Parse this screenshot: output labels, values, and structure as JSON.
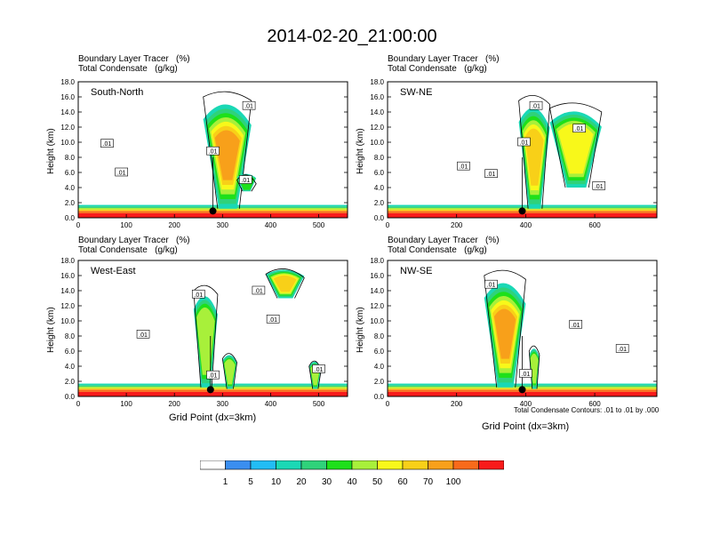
{
  "title": "2014-02-20_21:00:00",
  "colors": {
    "levels": [
      "#ffffff",
      "#3a8ef0",
      "#22bdf5",
      "#1ad8b5",
      "#2fd27a",
      "#1ee01a",
      "#a8f03a",
      "#f8f81a",
      "#f8d018",
      "#f8a01a",
      "#f86a1a",
      "#f81a1a"
    ]
  },
  "colorbar": {
    "labels": [
      "1",
      "5",
      "10",
      "20",
      "30",
      "40",
      "50",
      "60",
      "70",
      "100"
    ]
  },
  "shared": {
    "head_line1": "Boundary Layer Tracer   (%)",
    "head_line2": "Total Condensate   (g/kg)",
    "ylabel": "Height (km)",
    "xlabel": "Grid Point (dx=3km)",
    "contour_note": "Total Condensate Contours: .01 to .01 by .000",
    "yticks": [
      "0.0",
      "2.0",
      "4.0",
      "6.0",
      "8.0",
      "10.0",
      "12.0",
      "14.0",
      "16.0",
      "18.0"
    ]
  },
  "chart_data": [
    {
      "type": "heatmap",
      "name": "South-North",
      "xlabel": "",
      "ylabel": "Height (km)",
      "xlim": [
        0,
        560
      ],
      "ylim": [
        0,
        18
      ],
      "xticks": [
        0,
        100,
        200,
        300,
        400,
        500
      ],
      "yticks": [
        0,
        2,
        4,
        6,
        8,
        10,
        12,
        14,
        16,
        18
      ],
      "marker_x": 280,
      "contour_labels": [
        {
          "x": 60,
          "y": 9.8,
          "text": ".01"
        },
        {
          "x": 90,
          "y": 6.0,
          "text": ".01"
        },
        {
          "x": 280,
          "y": 8.8,
          "text": ".01"
        },
        {
          "x": 355,
          "y": 14.8,
          "text": ".01"
        },
        {
          "x": 348,
          "y": 5.0,
          "text": ".01"
        }
      ],
      "plumes": [
        {
          "x0": 260,
          "x1": 360,
          "ytop": 17.0,
          "base": 1.2,
          "peak": 60
        },
        {
          "x0": 330,
          "x1": 370,
          "ytop": 6.0,
          "base": 3.5,
          "peak": 20
        }
      ]
    },
    {
      "type": "heatmap",
      "name": "SW-NE",
      "xlabel": "",
      "ylabel": "Height (km)",
      "xlim": [
        0,
        780
      ],
      "ylim": [
        0,
        18
      ],
      "xticks": [
        0,
        200,
        400,
        600
      ],
      "yticks": [
        0,
        2,
        4,
        6,
        8,
        10,
        12,
        14,
        16,
        18
      ],
      "marker_x": 390,
      "contour_labels": [
        {
          "x": 395,
          "y": 10.0,
          "text": ".01"
        },
        {
          "x": 430,
          "y": 14.8,
          "text": ".01"
        },
        {
          "x": 555,
          "y": 11.8,
          "text": ".01"
        },
        {
          "x": 220,
          "y": 6.8,
          "text": ".01"
        },
        {
          "x": 300,
          "y": 5.8,
          "text": ".01"
        },
        {
          "x": 612,
          "y": 4.2,
          "text": ".01"
        }
      ],
      "plumes": [
        {
          "x0": 380,
          "x1": 470,
          "ytop": 16.5,
          "base": 1.2,
          "peak": 50
        },
        {
          "x0": 470,
          "x1": 620,
          "ytop": 15.5,
          "base": 4.0,
          "peak": 40
        }
      ]
    },
    {
      "type": "heatmap",
      "name": "West-East",
      "xlabel": "Grid Point (dx=3km)",
      "ylabel": "Height (km)",
      "xlim": [
        0,
        560
      ],
      "ylim": [
        0,
        18
      ],
      "xticks": [
        0,
        100,
        200,
        300,
        400,
        500
      ],
      "yticks": [
        0,
        2,
        4,
        6,
        8,
        10,
        12,
        14,
        16,
        18
      ],
      "marker_x": 275,
      "contour_labels": [
        {
          "x": 250,
          "y": 13.5,
          "text": ".01"
        },
        {
          "x": 375,
          "y": 14.0,
          "text": ".01"
        },
        {
          "x": 405,
          "y": 10.2,
          "text": ".01"
        },
        {
          "x": 135,
          "y": 8.2,
          "text": ".01"
        },
        {
          "x": 280,
          "y": 2.8,
          "text": ".01"
        },
        {
          "x": 500,
          "y": 3.6,
          "text": ".01"
        }
      ],
      "plumes": [
        {
          "x0": 240,
          "x1": 290,
          "ytop": 15.0,
          "base": 1.2,
          "peak": 30
        },
        {
          "x0": 390,
          "x1": 470,
          "ytop": 17.2,
          "base": 13.0,
          "peak": 50
        },
        {
          "x0": 300,
          "x1": 330,
          "ytop": 6.0,
          "base": 1.0,
          "peak": 30
        },
        {
          "x0": 480,
          "x1": 505,
          "ytop": 5.0,
          "base": 1.0,
          "peak": 30
        }
      ]
    },
    {
      "type": "heatmap",
      "name": "NW-SE",
      "xlabel": "Grid Point (dx=3km)",
      "ylabel": "Height (km)",
      "xlim": [
        0,
        780
      ],
      "ylim": [
        0,
        18
      ],
      "xticks": [
        0,
        200,
        400,
        600
      ],
      "yticks": [
        0,
        2,
        4,
        6,
        8,
        10,
        12,
        14,
        16,
        18
      ],
      "marker_x": 390,
      "contour_labels": [
        {
          "x": 300,
          "y": 14.8,
          "text": ".01"
        },
        {
          "x": 400,
          "y": 3.0,
          "text": ".01"
        },
        {
          "x": 545,
          "y": 9.5,
          "text": ".01"
        },
        {
          "x": 680,
          "y": 6.3,
          "text": ".01"
        }
      ],
      "plumes": [
        {
          "x0": 280,
          "x1": 400,
          "ytop": 17.0,
          "base": 1.2,
          "peak": 60
        },
        {
          "x0": 410,
          "x1": 440,
          "ytop": 7.0,
          "base": 1.0,
          "peak": 30
        }
      ]
    }
  ]
}
